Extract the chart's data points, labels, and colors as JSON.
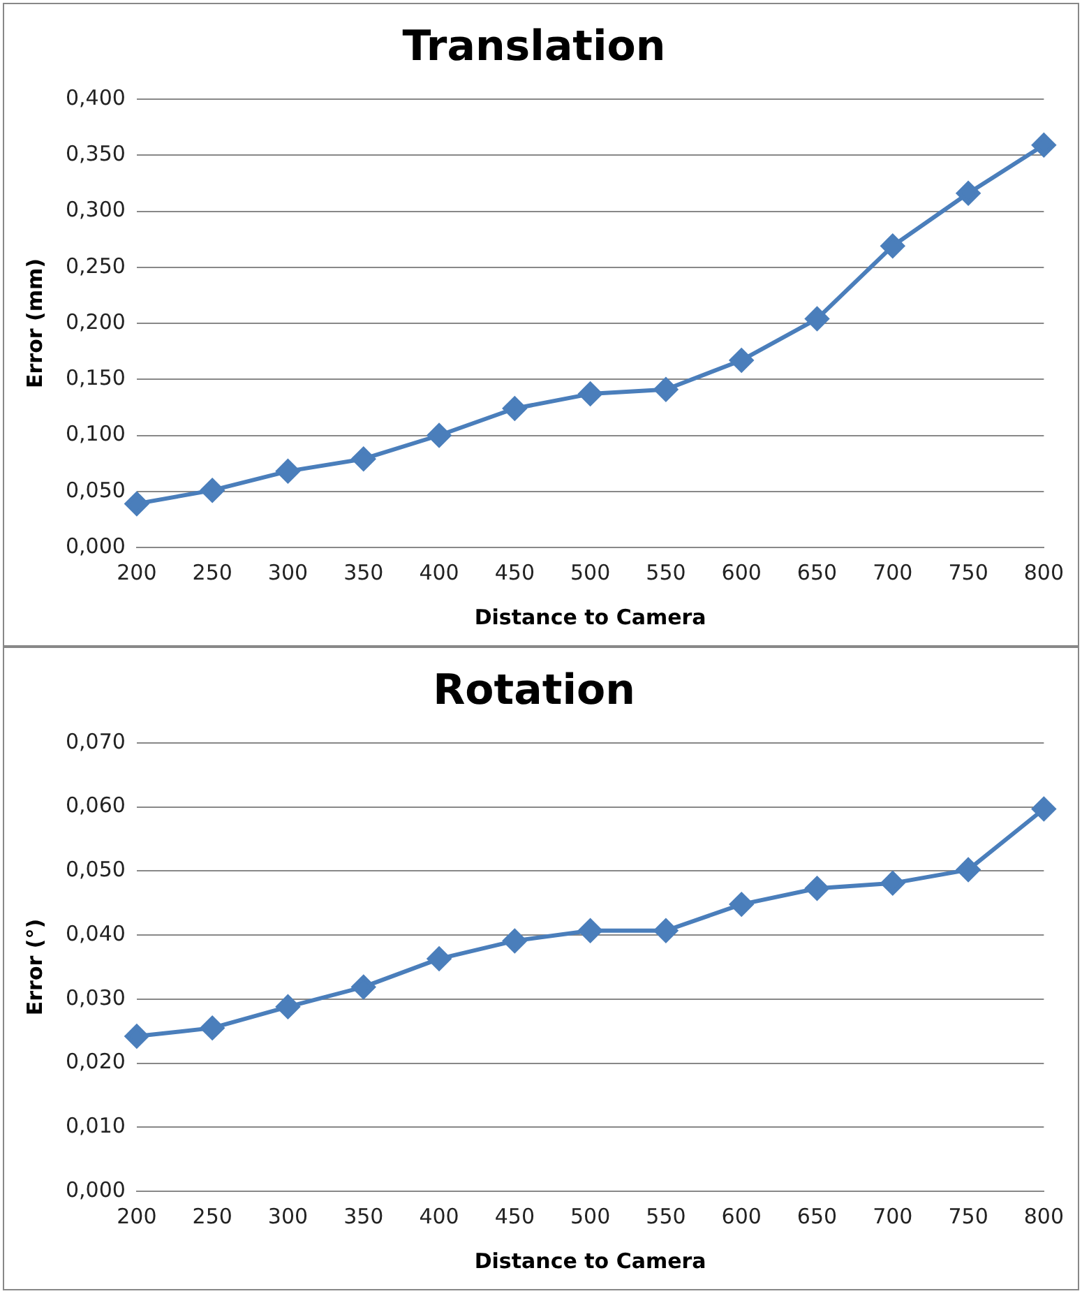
{
  "chart_data": [
    {
      "type": "line",
      "title": "Translation",
      "xlabel": "Distance to Camera",
      "ylabel": "Error (mm)",
      "categories": [
        "200",
        "250",
        "300",
        "350",
        "400",
        "450",
        "500",
        "550",
        "600",
        "650",
        "700",
        "750",
        "800"
      ],
      "series": [
        {
          "color": "#4a7ebb",
          "values": [
            0.039,
            0.051,
            0.068,
            0.079,
            0.1,
            0.124,
            0.137,
            0.141,
            0.167,
            0.204,
            0.269,
            0.316,
            0.359
          ]
        }
      ],
      "ylim": [
        0,
        0.4
      ],
      "yticks": [
        {
          "value": 0,
          "label": "0,000"
        },
        {
          "value": 0.05,
          "label": "0,050"
        },
        {
          "value": 0.1,
          "label": "0,100"
        },
        {
          "value": 0.15,
          "label": "0,150"
        },
        {
          "value": 0.2,
          "label": "0,200"
        },
        {
          "value": 0.25,
          "label": "0,250"
        },
        {
          "value": 0.3,
          "label": "0,300"
        },
        {
          "value": 0.35,
          "label": "0,350"
        },
        {
          "value": 0.4,
          "label": "0,400"
        }
      ],
      "grid": "y",
      "marker": "diamond",
      "line_style": "solid",
      "legend": false
    },
    {
      "type": "line",
      "title": "Rotation",
      "xlabel": "Distance to Camera",
      "ylabel": "Error (°)",
      "categories": [
        "200",
        "250",
        "300",
        "350",
        "400",
        "450",
        "500",
        "550",
        "600",
        "650",
        "700",
        "750",
        "800"
      ],
      "series": [
        {
          "color": "#4a7ebb",
          "values": [
            0.0242,
            0.0255,
            0.0288,
            0.0319,
            0.0363,
            0.0391,
            0.0407,
            0.0407,
            0.0448,
            0.0473,
            0.0481,
            0.0502,
            0.0597
          ]
        }
      ],
      "ylim": [
        0,
        0.07
      ],
      "yticks": [
        {
          "value": 0,
          "label": "0,000"
        },
        {
          "value": 0.01,
          "label": "0,010"
        },
        {
          "value": 0.02,
          "label": "0,020"
        },
        {
          "value": 0.03,
          "label": "0,030"
        },
        {
          "value": 0.04,
          "label": "0,040"
        },
        {
          "value": 0.05,
          "label": "0,050"
        },
        {
          "value": 0.06,
          "label": "0,060"
        },
        {
          "value": 0.07,
          "label": "0,070"
        }
      ],
      "grid": "y",
      "marker": "diamond",
      "line_style": "solid",
      "legend": false
    }
  ]
}
